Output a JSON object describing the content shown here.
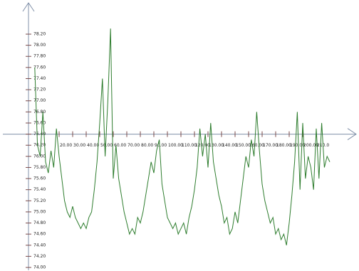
{
  "chart_data": {
    "type": "line",
    "x": [
      2,
      4,
      6,
      8,
      10,
      12,
      14,
      16,
      18,
      20,
      22,
      24,
      26,
      28,
      30,
      32,
      34,
      36,
      38,
      40,
      42,
      44,
      46,
      48,
      50,
      52,
      54,
      56,
      58,
      60,
      62,
      64,
      66,
      68,
      70,
      72,
      74,
      76,
      78,
      80,
      82,
      84,
      86,
      88,
      90,
      92,
      94,
      96,
      98,
      100,
      102,
      104,
      106,
      108,
      110,
      112,
      114,
      116,
      118,
      120,
      122,
      124,
      126,
      128,
      130,
      132,
      134,
      136,
      138,
      140,
      142,
      144,
      146,
      148,
      150,
      152,
      154,
      156,
      158,
      160,
      162,
      164,
      166,
      168,
      170,
      172,
      174,
      176,
      178,
      180,
      182,
      184,
      186,
      188,
      190,
      192,
      194,
      196,
      198,
      200,
      202,
      204,
      206,
      208,
      210,
      212,
      214,
      216,
      218,
      220
    ],
    "series": [
      {
        "color": "#2e7d2e",
        "values": [
          77.6,
          76.2,
          76.0,
          76.8,
          75.9,
          75.7,
          76.1,
          75.8,
          76.5,
          76.0,
          75.6,
          75.2,
          75.0,
          74.9,
          75.1,
          74.9,
          74.8,
          74.7,
          74.8,
          74.7,
          74.9,
          75.0,
          75.4,
          75.9,
          76.6,
          77.4,
          76.0,
          77.0,
          78.3,
          75.6,
          76.2,
          75.6,
          75.3,
          75.0,
          74.8,
          74.6,
          74.7,
          74.6,
          74.9,
          74.8,
          75.0,
          75.3,
          75.6,
          75.9,
          75.7,
          76.1,
          76.3,
          75.5,
          75.2,
          74.9,
          74.8,
          74.7,
          74.8,
          74.6,
          74.7,
          74.8,
          74.6,
          74.9,
          75.1,
          75.4,
          75.8,
          76.5,
          76.0,
          76.4,
          75.8,
          76.6,
          75.9,
          75.6,
          75.3,
          75.1,
          74.8,
          74.9,
          74.6,
          74.7,
          75.0,
          74.8,
          75.2,
          75.6,
          76.0,
          75.8,
          76.3,
          76.0,
          76.8,
          76.1,
          75.5,
          75.2,
          75.0,
          74.8,
          74.9,
          74.6,
          74.7,
          74.5,
          74.6,
          74.4,
          74.8,
          75.3,
          75.9,
          76.8,
          75.4,
          76.6,
          75.6,
          76.0,
          75.8,
          75.4,
          76.5,
          75.6,
          76.6,
          75.8,
          76.0,
          75.9
        ]
      }
    ],
    "xlim": [
      0,
      240
    ],
    "ylim": [
      74.0,
      78.2
    ],
    "x_axis_at": 76.4,
    "xticks": [
      {
        "value": 20,
        "label": "20.00"
      },
      {
        "value": 30,
        "label": "30.00"
      },
      {
        "value": 40,
        "label": "40.00"
      },
      {
        "value": 50,
        "label": "50.00"
      },
      {
        "value": 60,
        "label": "60.00"
      },
      {
        "value": 70,
        "label": "70.00"
      },
      {
        "value": 80,
        "label": "80.00"
      },
      {
        "value": 90,
        "label": "90.00"
      },
      {
        "value": 100,
        "label": "100.00"
      },
      {
        "value": 110,
        "label": "110.00"
      },
      {
        "value": 120,
        "label": "120.00"
      },
      {
        "value": 130,
        "label": "130.00"
      },
      {
        "value": 140,
        "label": "140.00"
      },
      {
        "value": 150,
        "label": "150.00"
      },
      {
        "value": 160,
        "label": "160.00"
      },
      {
        "value": 170,
        "label": "170.00"
      },
      {
        "value": 180,
        "label": "180.00"
      },
      {
        "value": 190,
        "label": "190.00"
      },
      {
        "value": 200,
        "label": "200.00"
      },
      {
        "value": 210,
        "label": "210.0"
      }
    ],
    "yticks": [
      {
        "value": 74.0,
        "label": "74.00"
      },
      {
        "value": 74.2,
        "label": "74.20"
      },
      {
        "value": 74.4,
        "label": "74.40"
      },
      {
        "value": 74.6,
        "label": "74.60"
      },
      {
        "value": 74.8,
        "label": "74.80"
      },
      {
        "value": 75.0,
        "label": "75.00"
      },
      {
        "value": 75.2,
        "label": "75.20"
      },
      {
        "value": 75.4,
        "label": "75.40"
      },
      {
        "value": 75.6,
        "label": "75.60"
      },
      {
        "value": 75.8,
        "label": "75.80"
      },
      {
        "value": 76.0,
        "label": "76.00"
      },
      {
        "value": 76.2,
        "label": "76.20"
      },
      {
        "value": 76.4,
        "label": "76.40"
      },
      {
        "value": 76.6,
        "label": "76.60"
      },
      {
        "value": 76.8,
        "label": "76.80"
      },
      {
        "value": 77.0,
        "label": "77.00"
      },
      {
        "value": 77.2,
        "label": "77.20"
      },
      {
        "value": 77.4,
        "label": "77.40"
      },
      {
        "value": 77.6,
        "label": "77.60"
      },
      {
        "value": 77.8,
        "label": "77.80"
      },
      {
        "value": 78.0,
        "label": "78.00"
      },
      {
        "value": 78.2,
        "label": "78.20"
      }
    ]
  }
}
